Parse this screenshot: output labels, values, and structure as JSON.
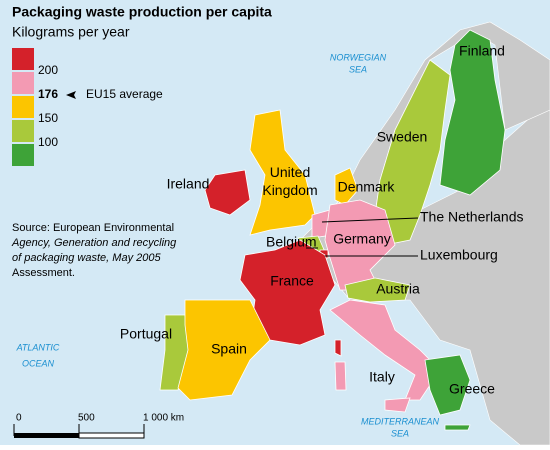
{
  "title": "Packaging waste production per capita",
  "subtitle": "Kilograms per year",
  "legend": {
    "colors": [
      "#d4212a",
      "#f39ab3",
      "#fcc500",
      "#a9c93b",
      "#3ea338"
    ],
    "ticks": [
      200,
      150,
      100
    ],
    "average": {
      "value": 176,
      "label": "EU15 average"
    }
  },
  "source": [
    "Source: European Environmental",
    "Agency, Generation and recycling",
    "of packaging waste, May 2005",
    "Assessment."
  ],
  "seas": [
    "NORWEGIAN",
    "SEA",
    "ATLANTIC",
    "OCEAN",
    "MEDITERRANEAN",
    "SEA"
  ],
  "countries": [
    {
      "name": "Finland",
      "color": "#3ea338"
    },
    {
      "name": "Sweden",
      "color": "#a9c93b"
    },
    {
      "name": "Ireland",
      "color": "#d4212a"
    },
    {
      "name": "United Kingdom",
      "color": "#fcc500"
    },
    {
      "name": "Denmark",
      "color": "#fcc500"
    },
    {
      "name": "The Netherlands",
      "color": "#f39ab3"
    },
    {
      "name": "Belgium",
      "color": "#a9c93b"
    },
    {
      "name": "Luxembourg",
      "color": "#d4212a"
    },
    {
      "name": "Germany",
      "color": "#f39ab3"
    },
    {
      "name": "France",
      "color": "#d4212a"
    },
    {
      "name": "Austria",
      "color": "#a9c93b"
    },
    {
      "name": "Italy",
      "color": "#f39ab3"
    },
    {
      "name": "Portugal",
      "color": "#a9c93b"
    },
    {
      "name": "Spain",
      "color": "#fcc500"
    },
    {
      "name": "Greece",
      "color": "#3ea338"
    }
  ],
  "scale": {
    "range": [
      0,
      1000
    ],
    "ticks": [
      0,
      500,
      {
        "value": 1000,
        "label": "1 000 km"
      }
    ]
  }
}
